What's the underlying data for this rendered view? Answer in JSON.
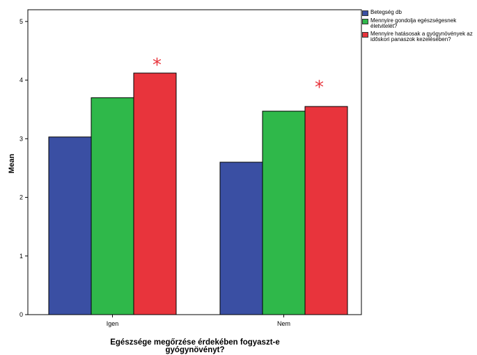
{
  "chart_data": {
    "type": "bar",
    "xlabel_line1": "Egészsége megőrzése érdekében fogyaszt-e",
    "xlabel_line2": "gyógynövényt?",
    "ylabel": "Mean",
    "ylim": [
      0,
      5.2
    ],
    "yticks": [
      0,
      1,
      2,
      3,
      4,
      5
    ],
    "categories": [
      "Igen",
      "Nem"
    ],
    "series": [
      {
        "name": "Betegség db",
        "color": "#3a4fa3",
        "values": [
          3.03,
          2.6
        ]
      },
      {
        "name": "Mennyire gondolja egészségesnek életvitelét?",
        "color": "#2fb84a",
        "values": [
          3.7,
          3.47
        ]
      },
      {
        "name": "Mennyire hatásosak a gyógynövények az időskori panaszok kezelésében?",
        "color": "#e8343c",
        "values": [
          4.12,
          3.55
        ]
      }
    ],
    "annotations": [
      {
        "text": "*",
        "category": "Igen",
        "series": 2
      },
      {
        "text": "*",
        "category": "Nem",
        "series": 2
      }
    ],
    "grid": false,
    "legend_position": "top-right"
  }
}
